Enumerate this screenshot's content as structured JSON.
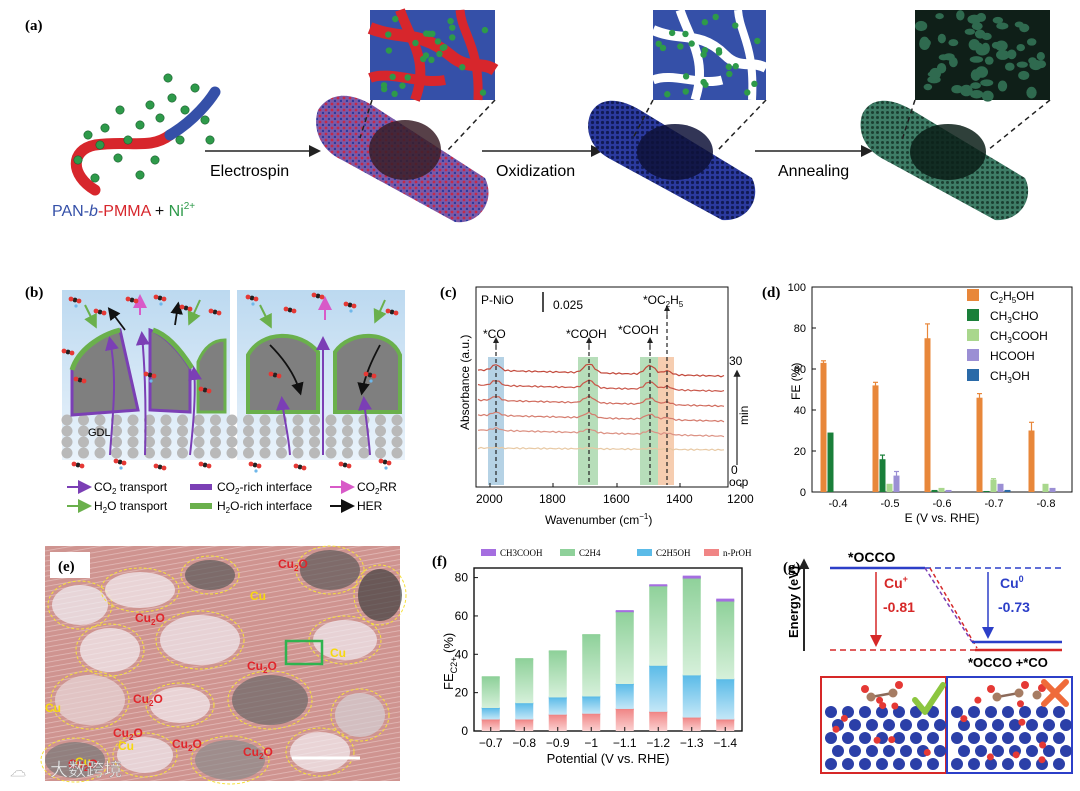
{
  "panel_labels": {
    "a": "(a)",
    "b": "(b)",
    "c": "(c)",
    "d": "(d)",
    "e": "(e)",
    "f": "(f)",
    "g": "(g)"
  },
  "panel_a": {
    "formula": {
      "p1": "PAN-",
      "p2": "b",
      "p3": "-PMMA",
      "p4": " + ",
      "p5": "Ni",
      "p6": "2+"
    },
    "steps": [
      "Electrospin",
      "Oxidization",
      "Annealing"
    ],
    "colors": {
      "pan": "#3550a8",
      "pmma": "#d7262c",
      "ni": "#2e9a4a",
      "carbon": "#1f4f3c"
    }
  },
  "panel_b": {
    "gdl_label": "GDL",
    "legend": [
      {
        "sym": "purple-arrow",
        "p1": "CO",
        "sub": "2",
        "p2": " transport"
      },
      {
        "sym": "purple-bar",
        "p1": "CO",
        "sub": "2",
        "p2": "-rich interface"
      },
      {
        "sym": "pink-arrow",
        "p1": "CO",
        "sub": "2",
        "p2": "RR"
      },
      {
        "sym": "green-arrow",
        "p1": "H",
        "sub": "2",
        "p2": "O  transport"
      },
      {
        "sym": "green-bar",
        "p1": "H",
        "sub": "2",
        "p2": "O-rich interface"
      },
      {
        "sym": "black-arrow",
        "p1": "HER",
        "sub": "",
        "p2": ""
      }
    ]
  },
  "panel_c": {
    "sample": "P-NiO",
    "scale_bar": "0.025",
    "peaks": [
      "*CO",
      "*COOH",
      "*COOH"
    ],
    "peak_ethoxy": {
      "p1": "*OC",
      "sub1": "2",
      "p2": "H",
      "sub2": "5"
    },
    "y_label": "Absorbance (a.u.)",
    "x_label": {
      "p1": "Wavenumber (cm",
      "sup": "−1",
      "p2": ")"
    },
    "x_ticks": [
      "2000",
      "1800",
      "1600",
      "1400",
      "1200"
    ],
    "time_top": "30",
    "time_bottom": "0",
    "time_unit": "min",
    "ocp": "ocp"
  },
  "chart_data": [
    {
      "type": "bar",
      "panel": "d",
      "title": "",
      "xlabel": "E (V vs. RHE)",
      "ylabel": "FE (%)",
      "categories": [
        "-0.4",
        "-0.5",
        "-0.6",
        "-0.7",
        "-0.8"
      ],
      "ylim": [
        0,
        100
      ],
      "yticks": [
        "0",
        "20",
        "40",
        "60",
        "80",
        "100"
      ],
      "series": [
        {
          "name": "C2H5OH",
          "color": "#e8873a",
          "values": [
            63,
            52,
            75,
            46,
            30
          ],
          "errors": [
            1,
            1.5,
            7,
            2,
            4
          ]
        },
        {
          "name": "CH3CHO",
          "color": "#1a7f3a",
          "values": [
            29,
            16,
            1,
            0.5,
            0
          ],
          "errors": [
            0,
            2,
            0,
            0,
            0
          ]
        },
        {
          "name": "CH3COOH",
          "color": "#a9d78d",
          "values": [
            0,
            4,
            2,
            6,
            4
          ],
          "errors": [
            0,
            0,
            0,
            0.5,
            0
          ]
        },
        {
          "name": "HCOOH",
          "color": "#9b8fd4",
          "values": [
            0,
            8,
            1,
            4,
            2
          ],
          "errors": [
            0,
            2,
            0,
            0,
            0
          ]
        },
        {
          "name": "CH3OH",
          "color": "#2a6aa8",
          "values": [
            0,
            0,
            0,
            1,
            0
          ],
          "errors": [
            0,
            0,
            0,
            0,
            0
          ]
        }
      ],
      "legend_labels": [
        {
          "p1": "C",
          "s1": "2",
          "p2": "H",
          "s2": "5",
          "p3": "OH"
        },
        {
          "p1": "CH",
          "s1": "3",
          "p2": "CHO",
          "s2": "",
          "p3": ""
        },
        {
          "p1": "CH",
          "s1": "3",
          "p2": "COOH",
          "s2": "",
          "p3": ""
        },
        {
          "p1": "HCOOH",
          "s1": "",
          "p2": "",
          "s2": "",
          "p3": ""
        },
        {
          "p1": "CH",
          "s1": "3",
          "p2": "OH",
          "s2": "",
          "p3": ""
        }
      ]
    },
    {
      "type": "bar",
      "stacked": true,
      "panel": "f",
      "xlabel": "Potential (V vs. RHE)",
      "ylabel": {
        "p1": "FE",
        "sub": "C2+",
        "p2": " (%)"
      },
      "categories": [
        "−0.7",
        "−0.8",
        "−0.9",
        "−1",
        "−1.1",
        "−1.2",
        "−1.3",
        "−1.4"
      ],
      "ylim": [
        0,
        85
      ],
      "yticks": [
        "0",
        "20",
        "40",
        "60",
        "80"
      ],
      "series": [
        {
          "name": "n-PrOH",
          "color": "#f08585",
          "values": [
            6,
            6,
            8.5,
            9,
            11.5,
            10,
            7,
            6
          ]
        },
        {
          "name": "C2H5OH",
          "color": "#5bbbe8",
          "values": [
            6,
            8.5,
            9,
            9,
            13,
            24,
            22,
            21
          ]
        },
        {
          "name": "C2H4",
          "color": "#8fd19a",
          "values": [
            16,
            23,
            24,
            32,
            37.5,
            41.5,
            50.5,
            40.5
          ]
        },
        {
          "name": "CH3COOH",
          "color": "#a56ee0",
          "values": [
            0,
            0,
            0,
            0,
            0.5,
            0.5,
            1,
            1
          ]
        }
      ],
      "legend_order": [
        "CH3COOH",
        "C2H4",
        "C2H5OH",
        "n-PrOH"
      ],
      "legend_labels": [
        "CH3COOH",
        "C2H4",
        "C2H5OH",
        "n-PrOH"
      ]
    }
  ],
  "panel_e": {
    "labels": [
      {
        "text": "Cu2O",
        "color": "red"
      },
      {
        "text": "Cu2O",
        "color": "red"
      },
      {
        "text": "Cu",
        "color": "yellow"
      },
      {
        "text": "Cu2O",
        "color": "red"
      },
      {
        "text": "Cu2O",
        "color": "red"
      },
      {
        "text": "Cu",
        "color": "yellow"
      },
      {
        "text": "Cu2O",
        "color": "red"
      },
      {
        "text": "Cu",
        "color": "yellow"
      },
      {
        "text": "Cu",
        "color": "yellow"
      },
      {
        "text": "Cu2O",
        "color": "red"
      },
      {
        "text": "Cu2O",
        "color": "red"
      },
      {
        "text": "Cu",
        "color": "yellow"
      },
      {
        "text": "Cu2O",
        "color": "red"
      }
    ]
  },
  "panel_g": {
    "y_label": "Energy (eV)",
    "top_state": "*OCCO",
    "bottom_state": "*OCCO +*CO",
    "cu_plus": {
      "name": "Cu",
      "sup": "+",
      "value": "-0.81",
      "color": "#d62828"
    },
    "cu_zero": {
      "name": "Cu",
      "sup": "0",
      "value": "-0.73",
      "color": "#2c3fc8"
    }
  },
  "watermark": "大数跨境"
}
